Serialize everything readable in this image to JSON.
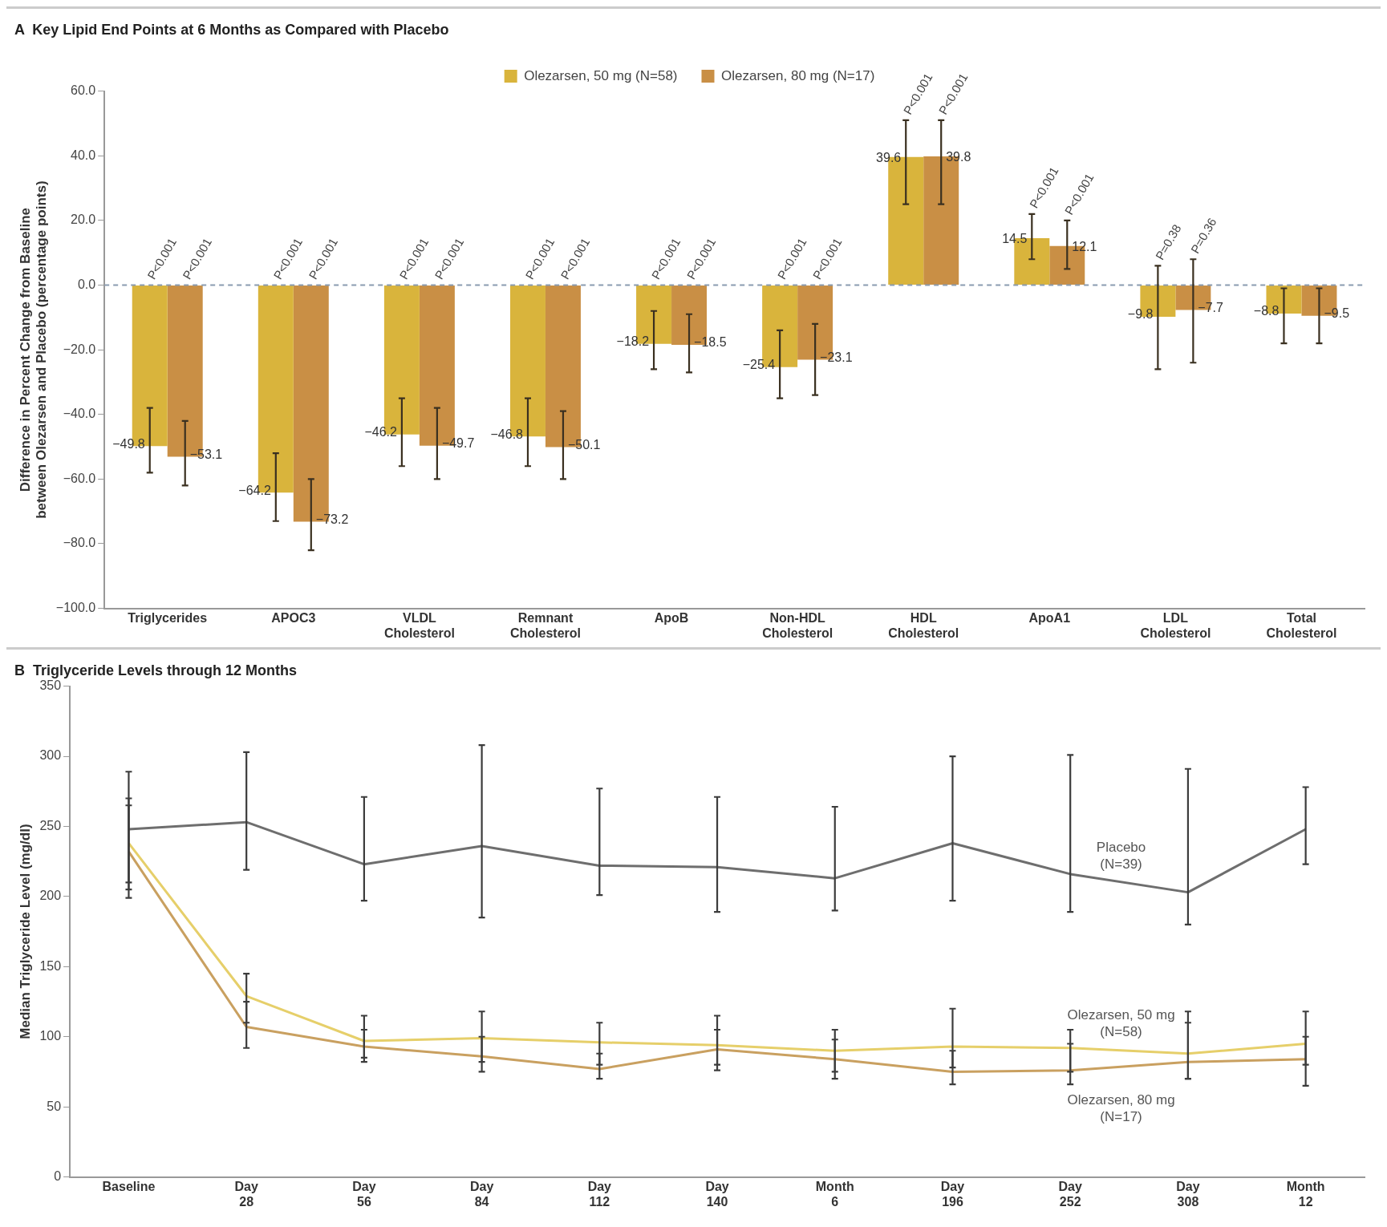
{
  "chart_data": [
    {
      "type": "bar",
      "title": "A  Key Lipid End Points at 6 Months as Compared with Placebo",
      "ylabel": "Difference in Percent Change from Baseline between Olezarsen and Placebo (percentage points)",
      "categories": [
        "Triglycerides",
        "APOC3",
        "VLDL Cholesterol",
        "Remnant Cholesterol",
        "ApoB",
        "Non-HDL Cholesterol",
        "HDL Cholesterol",
        "ApoA1",
        "LDL Cholesterol",
        "Total Cholesterol"
      ],
      "series": [
        {
          "name": "Olezarsen, 50 mg (N=58)",
          "color": "#d9b43c",
          "values": [
            -49.8,
            -64.2,
            -46.2,
            -46.8,
            -18.2,
            -25.4,
            39.6,
            14.5,
            -9.8,
            -8.8
          ],
          "errors": [
            [
              -58,
              -38
            ],
            [
              -73,
              -52
            ],
            [
              -56,
              -35
            ],
            [
              -56,
              -35
            ],
            [
              -26,
              -8
            ],
            [
              -35,
              -14
            ],
            [
              25,
              51
            ],
            [
              8,
              22
            ],
            [
              -26,
              6
            ],
            [
              -18,
              -1
            ]
          ]
        },
        {
          "name": "Olezarsen, 80 mg (N=17)",
          "color": "#c98f45",
          "values": [
            -53.1,
            -73.2,
            -49.7,
            -50.1,
            -18.5,
            -23.1,
            39.8,
            12.1,
            -7.7,
            -9.5
          ],
          "errors": [
            [
              -62,
              -42
            ],
            [
              -82,
              -60
            ],
            [
              -60,
              -38
            ],
            [
              -60,
              -39
            ],
            [
              -27,
              -9
            ],
            [
              -34,
              -12
            ],
            [
              25,
              51
            ],
            [
              5,
              20
            ],
            [
              -24,
              8
            ],
            [
              -18,
              -1
            ]
          ]
        }
      ],
      "ylim": [
        -100,
        60
      ],
      "yticks": [
        {
          "value": -100,
          "label": "−100.0"
        },
        {
          "value": -80,
          "label": "−80.0"
        },
        {
          "value": -60,
          "label": "−60.0"
        },
        {
          "value": -40,
          "label": "−40.0"
        },
        {
          "value": -20,
          "label": "−20.0"
        },
        {
          "value": 0,
          "label": "0.0"
        },
        {
          "value": 20,
          "label": "20.0"
        },
        {
          "value": 40,
          "label": "40.0"
        },
        {
          "value": 60,
          "label": "60.0"
        }
      ],
      "ref_lines": [
        {
          "axis": "y",
          "value": 0,
          "color": "#8a9bb0",
          "line_style": "dashed"
        }
      ],
      "data_labels": true,
      "grid": false,
      "legend": "top",
      "annotations": [
        "P<0.001",
        "P<0.001",
        "P<0.001",
        "P<0.001",
        "P<0.001",
        "P<0.001",
        "P<0.001",
        "P<0.001",
        "P<0.001",
        "P<0.001",
        "P<0.001",
        "P<0.001",
        "P<0.001",
        "P<0.001",
        "P<0.001",
        "P<0.001",
        "P=0.38",
        "P=0.36"
      ]
    },
    {
      "type": "line",
      "title": "B  Triglyceride Levels through 12 Months",
      "ylabel": "Median Triglyceride Level (mg/dl)",
      "categories": [
        "Baseline",
        "Day 28",
        "Day 56",
        "Day 84",
        "Day 112",
        "Day 140",
        "Month 6",
        "Day 196",
        "Day 252",
        "Day 308",
        "Month 12"
      ],
      "ylim": [
        0,
        350
      ],
      "yticks": [
        0,
        50,
        100,
        150,
        200,
        250,
        300,
        350
      ],
      "series": [
        {
          "name": "Placebo (N=39)",
          "color": "#6e6e6e",
          "values": [
            248,
            253,
            223,
            236,
            222,
            221,
            213,
            238,
            216,
            203,
            248
          ],
          "errors": [
            [
              199,
              289
            ],
            [
              219,
              303
            ],
            [
              197,
              271
            ],
            [
              185,
              308
            ],
            [
              201,
              277
            ],
            [
              189,
              271
            ],
            [
              190,
              264
            ],
            [
              197,
              300
            ],
            [
              189,
              301
            ],
            [
              180,
              291
            ],
            [
              223,
              278
            ]
          ]
        },
        {
          "name": "Olezarsen, 50 mg (N=58)",
          "color": "#e6cf6a",
          "values": [
            238,
            129,
            97,
            99,
            96,
            94,
            90,
            93,
            92,
            88,
            95
          ],
          "errors": [
            [
              205,
              270
            ],
            [
              110,
              145
            ],
            [
              85,
              115
            ],
            [
              82,
              118
            ],
            [
              80,
              110
            ],
            [
              80,
              115
            ],
            [
              75,
              105
            ],
            [
              78,
              120
            ],
            [
              75,
              105
            ],
            [
              70,
              118
            ],
            [
              80,
              118
            ]
          ]
        },
        {
          "name": "Olezarsen, 80 mg (N=17)",
          "color": "#c9a060",
          "values": [
            232,
            107,
            93,
            86,
            77,
            91,
            84,
            75,
            76,
            82,
            84
          ],
          "errors": [
            [
              210,
              265
            ],
            [
              92,
              125
            ],
            [
              82,
              105
            ],
            [
              75,
              100
            ],
            [
              70,
              88
            ],
            [
              76,
              105
            ],
            [
              70,
              98
            ],
            [
              66,
              90
            ],
            [
              66,
              95
            ],
            [
              70,
              110
            ],
            [
              65,
              100
            ]
          ]
        }
      ],
      "grid": false,
      "legend": false,
      "marker": "none"
    }
  ]
}
